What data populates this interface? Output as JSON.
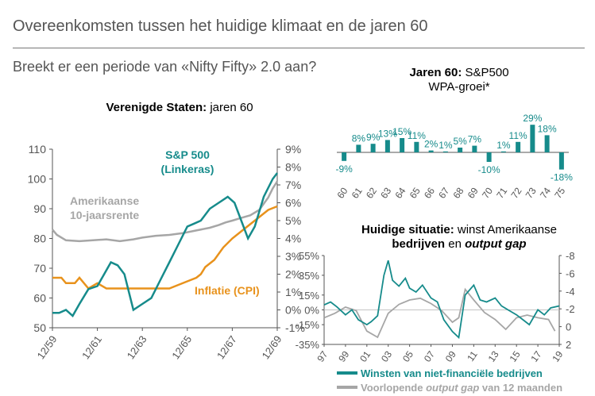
{
  "header": {
    "title": "Overeenkomsten tussen het huidige klimaat en de jaren 60",
    "subtitle": "Breekt er een periode van «Nifty Fifty» 2.0 aan?"
  },
  "colors": {
    "teal": "#168b8b",
    "orange": "#e8921c",
    "grey": "#a6a6a6",
    "axis": "#555555"
  },
  "chart_data": [
    {
      "type": "line",
      "title_bold": "Verenigde Staten:",
      "title_rest": " jaren 60",
      "x": [
        "12/59",
        "12/61",
        "12/63",
        "12/65",
        "12/67",
        "12/69"
      ],
      "left_axis": {
        "ylim": [
          50,
          110
        ],
        "ticks": [
          "50",
          "60",
          "70",
          "80",
          "90",
          "100",
          "110"
        ]
      },
      "right_axis": {
        "ylim": [
          -1,
          9
        ],
        "ticks": [
          "-1%",
          "0%",
          "1%",
          "2%",
          "3%",
          "4%",
          "5%",
          "6%",
          "7%",
          "8%",
          "9%"
        ]
      },
      "series": [
        {
          "name": "S&P 500",
          "name2": "(Linkeras)",
          "axis": "left",
          "x": [
            0,
            0.15,
            0.3,
            0.45,
            0.6,
            0.8,
            1.0,
            1.15,
            1.3,
            1.45,
            1.6,
            1.8,
            2.0,
            2.2,
            2.4,
            2.6,
            2.8,
            3.0,
            3.15,
            3.3,
            3.5,
            3.7,
            3.9,
            4.05,
            4.2,
            4.35,
            4.5,
            4.7,
            4.9,
            5.0
          ],
          "values": [
            55,
            55,
            56,
            54,
            58,
            63,
            64,
            68,
            72,
            71,
            68,
            56,
            58,
            60,
            66,
            72,
            78,
            84,
            85,
            86,
            90,
            92,
            94,
            92,
            86,
            80,
            84,
            94,
            100,
            102
          ]
        },
        {
          "name": "Amerikaanse",
          "name2": "10-jaarsrente",
          "axis": "right",
          "x": [
            0,
            0.1,
            0.3,
            0.6,
            0.9,
            1.2,
            1.5,
            1.8,
            2.0,
            2.3,
            2.6,
            2.9,
            3.2,
            3.5,
            3.7,
            3.85,
            4.0,
            4.2,
            4.4,
            4.6,
            4.8,
            4.9,
            5.0
          ],
          "values": [
            4.5,
            4.2,
            3.9,
            3.85,
            3.9,
            3.95,
            3.85,
            3.95,
            4.05,
            4.15,
            4.2,
            4.3,
            4.45,
            4.6,
            4.75,
            4.9,
            5.0,
            5.15,
            5.3,
            5.6,
            6.3,
            6.8,
            7.2
          ]
        },
        {
          "name": "Inflatie (CPI)",
          "axis": "right",
          "x": [
            0,
            0.2,
            0.3,
            0.5,
            0.6,
            0.8,
            1.0,
            1.2,
            1.4,
            1.6,
            1.8,
            2.0,
            2.2,
            2.4,
            2.6,
            2.8,
            3.0,
            3.2,
            3.3,
            3.4,
            3.6,
            3.8,
            4.0,
            4.2,
            4.4,
            4.6,
            4.8,
            5.0
          ],
          "values": [
            1.8,
            1.8,
            1.5,
            1.5,
            1.8,
            1.2,
            1.5,
            1.2,
            1.2,
            1.2,
            1.2,
            1.2,
            1.2,
            1.2,
            1.2,
            1.4,
            1.6,
            1.8,
            2.0,
            2.4,
            2.8,
            3.5,
            4.0,
            4.4,
            4.8,
            5.2,
            5.6,
            5.8
          ]
        }
      ]
    },
    {
      "type": "bar",
      "title_bold": "Jaren 60:",
      "title_rest": " S&P500",
      "title_line2": "WPA-groei*",
      "categories": [
        "60",
        "61",
        "62",
        "63",
        "64",
        "65",
        "66",
        "67",
        "68",
        "69",
        "70",
        "71",
        "72",
        "73",
        "74",
        "75"
      ],
      "values": [
        -9,
        8,
        9,
        13,
        15,
        11,
        2,
        1,
        5,
        7,
        -10,
        1,
        11,
        29,
        18,
        -18
      ],
      "labels": [
        "-9%",
        "8%",
        "9%",
        "13%",
        "15%",
        "11%",
        "2%",
        "1%",
        "5%",
        "7%",
        "-10%",
        "1%",
        "11%",
        "29%",
        "18%",
        "-18%"
      ]
    },
    {
      "type": "line",
      "title_bold": "Huidige situatie:",
      "title_rest": " winst Amerikaanse",
      "title_line2_bold": "bedrijven",
      "title_line2_rest": " en ",
      "title_line2_italic": "output gap",
      "x": [
        "97",
        "99",
        "01",
        "03",
        "05",
        "07",
        "09",
        "11",
        "13",
        "15",
        "17",
        "19"
      ],
      "left_axis": {
        "ylim": [
          -35,
          55
        ],
        "ticks": [
          "-35%",
          "-15%",
          "0%",
          "15%",
          "35%",
          "55%"
        ],
        "tick_values": [
          -35,
          -15,
          0,
          15,
          35,
          55
        ]
      },
      "right_axis": {
        "ylim": [
          -8,
          2
        ],
        "ticks": [
          "-8",
          "-6",
          "-4",
          "-2",
          "0",
          "2"
        ],
        "inverted": true
      },
      "series": [
        {
          "name": "Winsten van niet-financiële bedrijven",
          "axis": "left",
          "x": [
            0,
            0.3,
            0.6,
            1.0,
            1.3,
            1.6,
            2.0,
            2.2,
            2.5,
            2.8,
            3.0,
            3.2,
            3.5,
            3.8,
            4.0,
            4.3,
            4.6,
            5.0,
            5.3,
            5.6,
            6.0,
            6.3,
            6.6,
            7.0,
            7.3,
            7.6,
            8.0,
            8.3,
            8.6,
            9.0,
            9.3,
            9.6,
            10.0,
            10.3,
            10.6,
            11.0
          ],
          "values": [
            5,
            8,
            3,
            -5,
            0,
            -10,
            -15,
            -12,
            -6,
            35,
            50,
            30,
            24,
            32,
            22,
            18,
            25,
            12,
            8,
            -10,
            -22,
            -28,
            15,
            25,
            10,
            8,
            12,
            4,
            0,
            -5,
            -10,
            -15,
            0,
            -5,
            2,
            4
          ]
        },
        {
          "name": "Voorlopende output gap van 12 maanden",
          "name_pre": "Voorlopende ",
          "name_italic": "output gap",
          "name_post": " van 12 maanden",
          "axis": "right",
          "x": [
            0,
            0.5,
            1.0,
            1.5,
            2.0,
            2.5,
            3.0,
            3.5,
            4.0,
            4.5,
            5.0,
            5.5,
            6.0,
            6.3,
            6.6,
            7.0,
            7.5,
            8.0,
            8.5,
            9.0,
            9.5,
            10.0,
            10.5,
            10.8
          ],
          "values": [
            -1,
            -1.5,
            -2.2,
            -1.8,
            0.5,
            1.2,
            -1.5,
            -2.5,
            -3.0,
            -3.2,
            -2.6,
            -1.8,
            -0.5,
            -1.0,
            -4.2,
            -3.0,
            -1.6,
            -0.8,
            0.3,
            -1.0,
            -1.3,
            -1.0,
            -0.8,
            0.5
          ]
        }
      ]
    }
  ]
}
